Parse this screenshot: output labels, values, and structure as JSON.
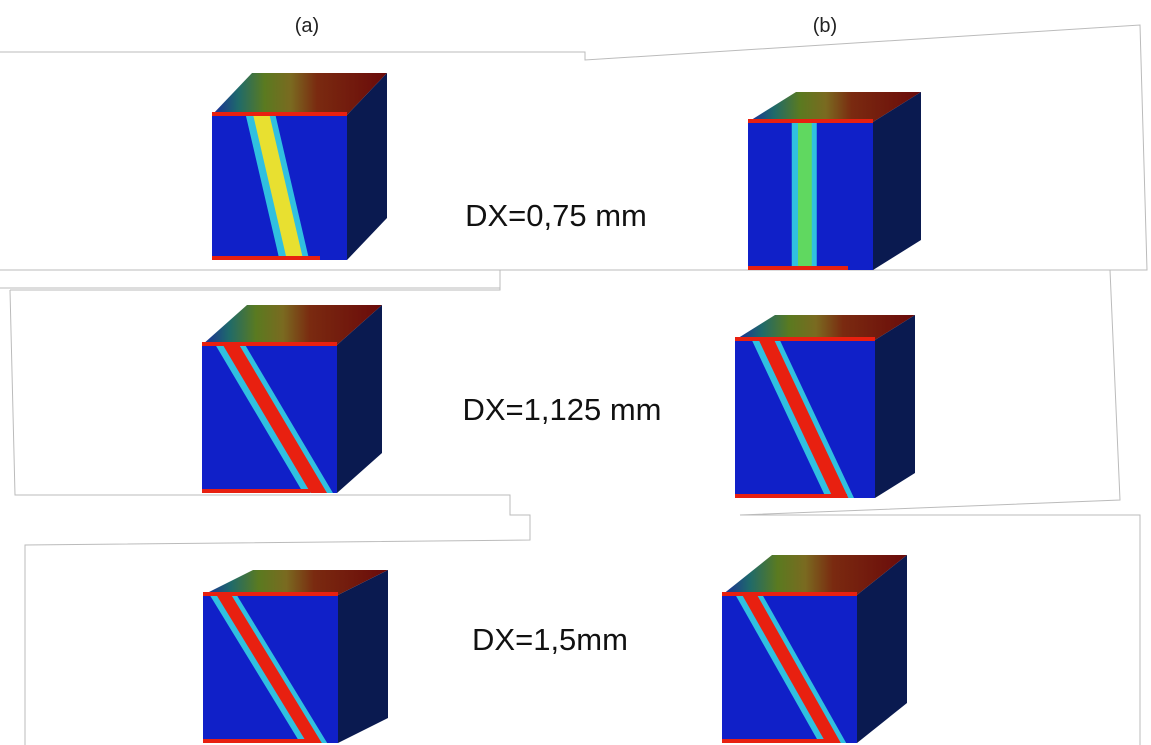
{
  "columns": [
    "(a)",
    "(b)"
  ],
  "rows": [
    {
      "label": "DX=0,75 mm"
    },
    {
      "label": "DX=1,125 mm"
    },
    {
      "label": "DX=1,5mm"
    }
  ]
}
